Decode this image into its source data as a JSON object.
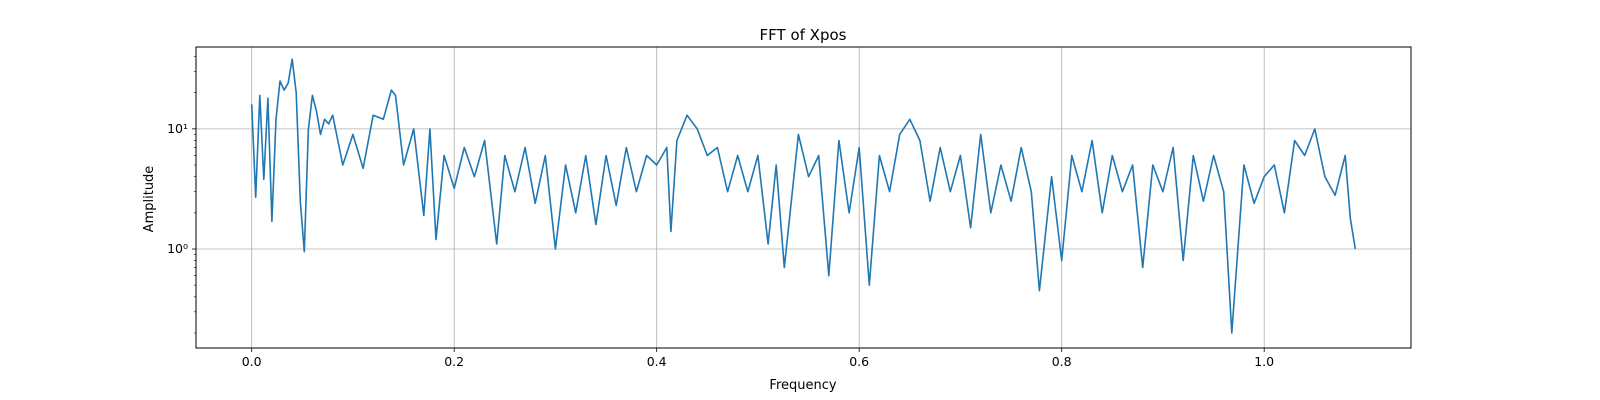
{
  "chart_data": {
    "type": "line",
    "title": "FFT of Xpos",
    "xlabel": "Frequency",
    "ylabel": "Amplitude",
    "x_ticks": [
      "0.0",
      "0.2",
      "0.4",
      "0.6",
      "0.8",
      "1.0"
    ],
    "y_ticks": [
      "10⁰",
      "10¹"
    ],
    "xlim": [
      -0.055,
      1.145
    ],
    "ylim": [
      0.15,
      48
    ],
    "yscale": "log",
    "grid": true,
    "color": "#1f77b4",
    "series": [
      {
        "x": [
          0.0,
          0.004,
          0.008,
          0.012,
          0.016,
          0.02,
          0.024,
          0.028,
          0.032,
          0.036,
          0.04,
          0.044,
          0.048,
          0.052,
          0.056,
          0.06,
          0.064,
          0.068,
          0.072,
          0.076,
          0.08,
          0.09,
          0.1,
          0.11,
          0.12,
          0.13,
          0.138,
          0.142,
          0.15,
          0.16,
          0.17,
          0.176,
          0.182,
          0.19,
          0.2,
          0.21,
          0.22,
          0.23,
          0.242,
          0.25,
          0.26,
          0.27,
          0.28,
          0.29,
          0.3,
          0.31,
          0.32,
          0.33,
          0.34,
          0.35,
          0.36,
          0.37,
          0.38,
          0.39,
          0.4,
          0.41,
          0.414,
          0.42,
          0.43,
          0.44,
          0.45,
          0.46,
          0.47,
          0.48,
          0.49,
          0.5,
          0.51,
          0.518,
          0.526,
          0.54,
          0.55,
          0.56,
          0.57,
          0.58,
          0.59,
          0.6,
          0.61,
          0.62,
          0.63,
          0.64,
          0.65,
          0.66,
          0.67,
          0.68,
          0.69,
          0.7,
          0.71,
          0.72,
          0.73,
          0.74,
          0.75,
          0.76,
          0.77,
          0.778,
          0.79,
          0.8,
          0.81,
          0.82,
          0.83,
          0.84,
          0.85,
          0.86,
          0.87,
          0.88,
          0.89,
          0.9,
          0.91,
          0.92,
          0.93,
          0.94,
          0.95,
          0.96,
          0.968,
          0.98,
          0.99,
          1.0,
          1.01,
          1.02,
          1.03,
          1.04,
          1.05,
          1.06,
          1.07,
          1.08,
          1.085,
          1.09
        ],
        "y": [
          16,
          2.7,
          19,
          3.8,
          18,
          1.7,
          12,
          25,
          21,
          24,
          38,
          20,
          2.5,
          0.95,
          10,
          19,
          14,
          9,
          12,
          11,
          13,
          5,
          9,
          4.7,
          13,
          12,
          21,
          19,
          5,
          10,
          1.9,
          10,
          1.2,
          6,
          3.2,
          7,
          4,
          8,
          1.1,
          6,
          3,
          7,
          2.4,
          6,
          1.0,
          5,
          2,
          6,
          1.6,
          6,
          2.3,
          7,
          3,
          6,
          5,
          7,
          1.4,
          8,
          13,
          10,
          6,
          7,
          3,
          6,
          3,
          6,
          1.1,
          5,
          0.7,
          9,
          4,
          6,
          0.6,
          8,
          2,
          7,
          0.5,
          6,
          3,
          9,
          12,
          8,
          2.5,
          7,
          3,
          6,
          1.5,
          9,
          2,
          5,
          2.5,
          7,
          3,
          0.45,
          4,
          0.8,
          6,
          3,
          8,
          2,
          6,
          3,
          5,
          0.7,
          5,
          3,
          7,
          0.8,
          6,
          2.5,
          6,
          3,
          0.2,
          5,
          2.4,
          4,
          5,
          2,
          8,
          6,
          10,
          4,
          2.8,
          6,
          1.8,
          1.0
        ]
      }
    ]
  }
}
